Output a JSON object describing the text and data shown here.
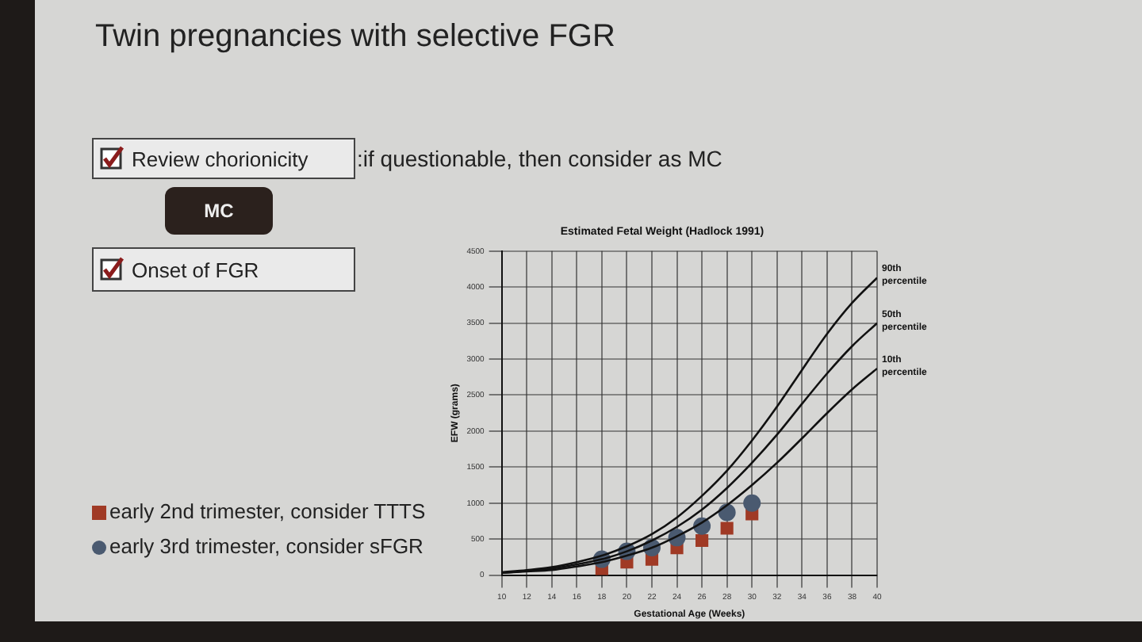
{
  "chart_data": {
    "type": "scatter",
    "title": "Estimated Fetal Weight (Hadlock 1991)",
    "xlabel": "Gestational Age (Weeks)",
    "ylabel": "EFW (grams)",
    "xlim": [
      10,
      40
    ],
    "xticks": [
      10,
      12,
      14,
      16,
      18,
      20,
      22,
      24,
      26,
      28,
      30,
      32,
      34,
      36,
      38,
      40
    ],
    "ylim": [
      0,
      4500
    ],
    "yticks": [
      0,
      500,
      1000,
      1500,
      2000,
      2500,
      3000,
      3500,
      4000,
      4500
    ],
    "grid": true,
    "legend": "left",
    "annotations": [
      "Twin pregnancies with selective FGR",
      "Review chorionicity",
      ":if questionable, then consider as MC",
      "MC",
      "Onset of FGR"
    ],
    "series": [
      {
        "name": "90th percentile",
        "type": "line",
        "marker": "none",
        "color": "#111111",
        "x": [
          10,
          12,
          14,
          16,
          18,
          20,
          22,
          24,
          26,
          28,
          30,
          32,
          34,
          36,
          38,
          40
        ],
        "values": [
          40,
          70,
          110,
          180,
          270,
          400,
          570,
          800,
          1100,
          1450,
          1870,
          2340,
          2850,
          3350,
          3780,
          4130
        ]
      },
      {
        "name": "50th percentile",
        "type": "line",
        "marker": "none",
        "color": "#111111",
        "x": [
          10,
          12,
          14,
          16,
          18,
          20,
          22,
          24,
          26,
          28,
          30,
          32,
          34,
          36,
          38,
          40
        ],
        "values": [
          30,
          60,
          90,
          150,
          220,
          330,
          480,
          670,
          910,
          1210,
          1560,
          1950,
          2380,
          2800,
          3180,
          3500
        ]
      },
      {
        "name": "10th percentile",
        "type": "line",
        "marker": "none",
        "color": "#111111",
        "x": [
          10,
          12,
          14,
          16,
          18,
          20,
          22,
          24,
          26,
          28,
          30,
          32,
          34,
          36,
          38,
          40
        ],
        "values": [
          30,
          50,
          70,
          120,
          180,
          270,
          380,
          540,
          730,
          970,
          1250,
          1560,
          1900,
          2250,
          2580,
          2870
        ]
      },
      {
        "name": "early 3rd trimester, consider sFGR",
        "type": "scatter",
        "marker": "circle",
        "color": "#4a5a70",
        "x": [
          18,
          20,
          22,
          24,
          26,
          28,
          30
        ],
        "values": [
          220,
          330,
          380,
          520,
          680,
          870,
          1000
        ]
      },
      {
        "name": "early 2nd trimester, consider TTTS",
        "type": "scatter",
        "marker": "square",
        "color": "#a03a25",
        "x": [
          18,
          20,
          22,
          24,
          26,
          28,
          30
        ],
        "values": [
          50,
          180,
          220,
          380,
          480,
          650,
          850
        ]
      }
    ]
  }
}
